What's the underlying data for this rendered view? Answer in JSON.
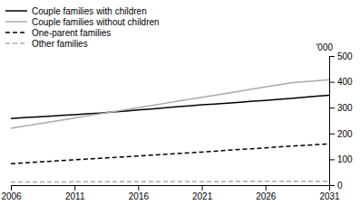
{
  "chart_data": {
    "type": "line",
    "x": [
      2006,
      2007,
      2008,
      2009,
      2010,
      2011,
      2012,
      2013,
      2014,
      2015,
      2016,
      2017,
      2018,
      2019,
      2020,
      2021,
      2022,
      2023,
      2024,
      2025,
      2026,
      2027,
      2028,
      2029,
      2030,
      2031
    ],
    "series": [
      {
        "name": "Couple families with children",
        "color": "#000000",
        "line_style": "solid",
        "values": [
          258,
          261,
          264,
          267,
          270,
          273,
          276,
          279,
          283,
          287,
          291,
          295,
          299,
          303,
          307,
          311,
          314,
          317,
          321,
          325,
          328,
          332,
          336,
          340,
          344,
          348
        ]
      },
      {
        "name": "Couple families without children",
        "color": "#aaaaaa",
        "line_style": "solid",
        "values": [
          220,
          228,
          236,
          244,
          252,
          260,
          268,
          276,
          284,
          292,
          300,
          308,
          316,
          324,
          332,
          340,
          348,
          356,
          364,
          372,
          380,
          388,
          396,
          400,
          404,
          408
        ]
      },
      {
        "name": "One-parent families",
        "color": "#000000",
        "line_style": "dashed",
        "values": [
          83,
          86,
          89,
          92,
          95,
          98,
          101,
          104,
          107,
          110,
          113,
          116,
          119,
          122,
          125,
          128,
          131,
          135,
          138,
          141,
          144,
          148,
          151,
          154,
          157,
          160
        ]
      },
      {
        "name": "Other families",
        "color": "#aaaaaa",
        "line_style": "dashed",
        "values": [
          12,
          12,
          12,
          12,
          12,
          13,
          13,
          13,
          13,
          13,
          13,
          14,
          14,
          14,
          14,
          14,
          14,
          14,
          15,
          15,
          15,
          15,
          15,
          15,
          15,
          15
        ]
      }
    ],
    "xlim": [
      2006,
      2031
    ],
    "ylim": [
      0,
      500
    ],
    "xticks": [
      2006,
      2011,
      2016,
      2021,
      2026,
      2031
    ],
    "yticks": [
      0,
      100,
      200,
      300,
      400,
      500
    ],
    "ylabel": "'000",
    "legend": "upper left",
    "grid": false
  }
}
